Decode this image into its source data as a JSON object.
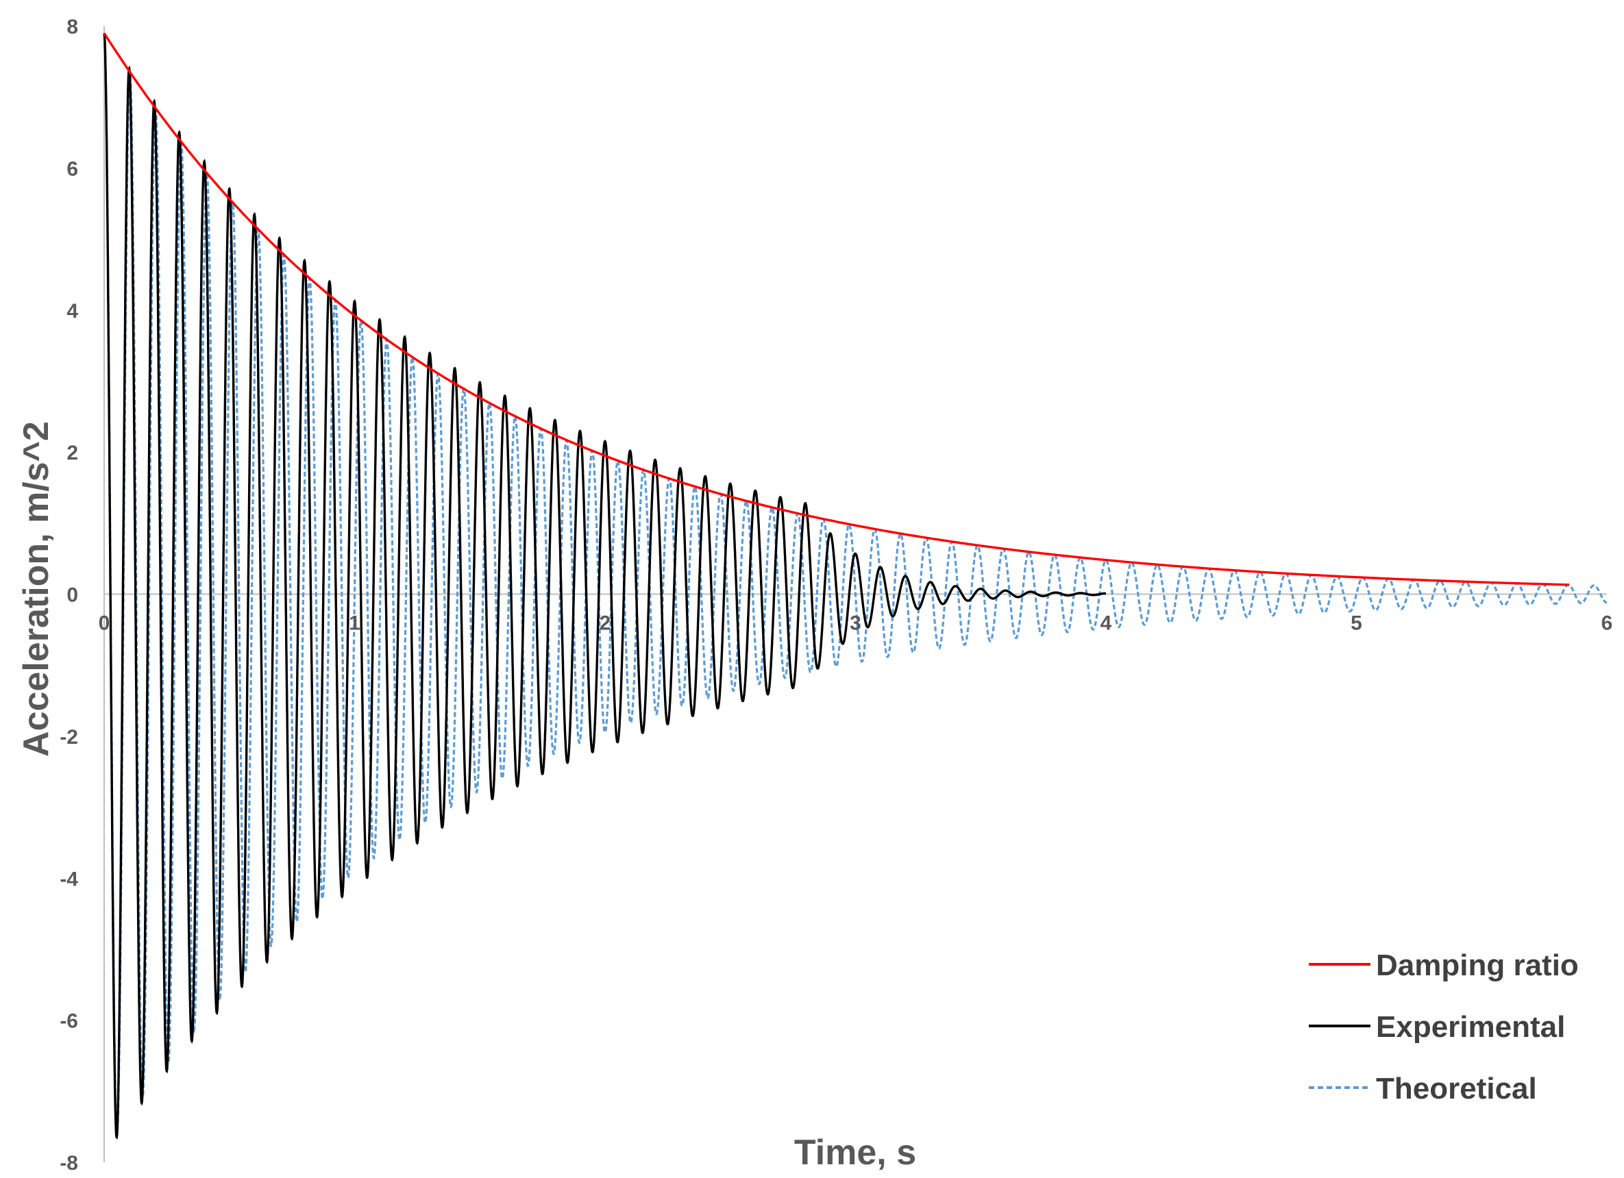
{
  "chart_data": {
    "type": "line",
    "title": "",
    "xlabel": "Time, s",
    "ylabel": "Acceleration, m/s^2",
    "xlim": [
      0,
      6
    ],
    "ylim": [
      -8,
      8
    ],
    "x_ticks": [
      "0",
      "1",
      "2",
      "3",
      "4",
      "5",
      "6"
    ],
    "y_ticks": [
      "-8",
      "-6",
      "-4",
      "-2",
      "0",
      "2",
      "4",
      "6",
      "8"
    ],
    "grid": false,
    "legend": {
      "position": "bottom-right",
      "entries": [
        "Damping ratio",
        "Experimental",
        "Theoretical"
      ]
    },
    "series": [
      {
        "name": "Damping ratio",
        "style": "solid",
        "color": "#ff0000",
        "kind": "exponential-envelope",
        "amplitude": 7.9,
        "decay_rate": 0.7,
        "t_range": [
          0,
          5.85
        ]
      },
      {
        "name": "Experimental",
        "style": "solid",
        "color": "#000000",
        "kind": "damped-oscillation",
        "amplitude": 7.9,
        "decay_rate": 0.65,
        "frequency_hz": 10,
        "extra_decay_after": 2.8,
        "t_range": [
          0,
          4.0
        ]
      },
      {
        "name": "Theoretical",
        "style": "dashed",
        "color": "#5b9bd5",
        "kind": "damped-oscillation",
        "amplitude": 7.9,
        "decay_rate": 0.7,
        "frequency_hz": 9.75,
        "t_range": [
          0,
          6.0
        ]
      }
    ]
  }
}
